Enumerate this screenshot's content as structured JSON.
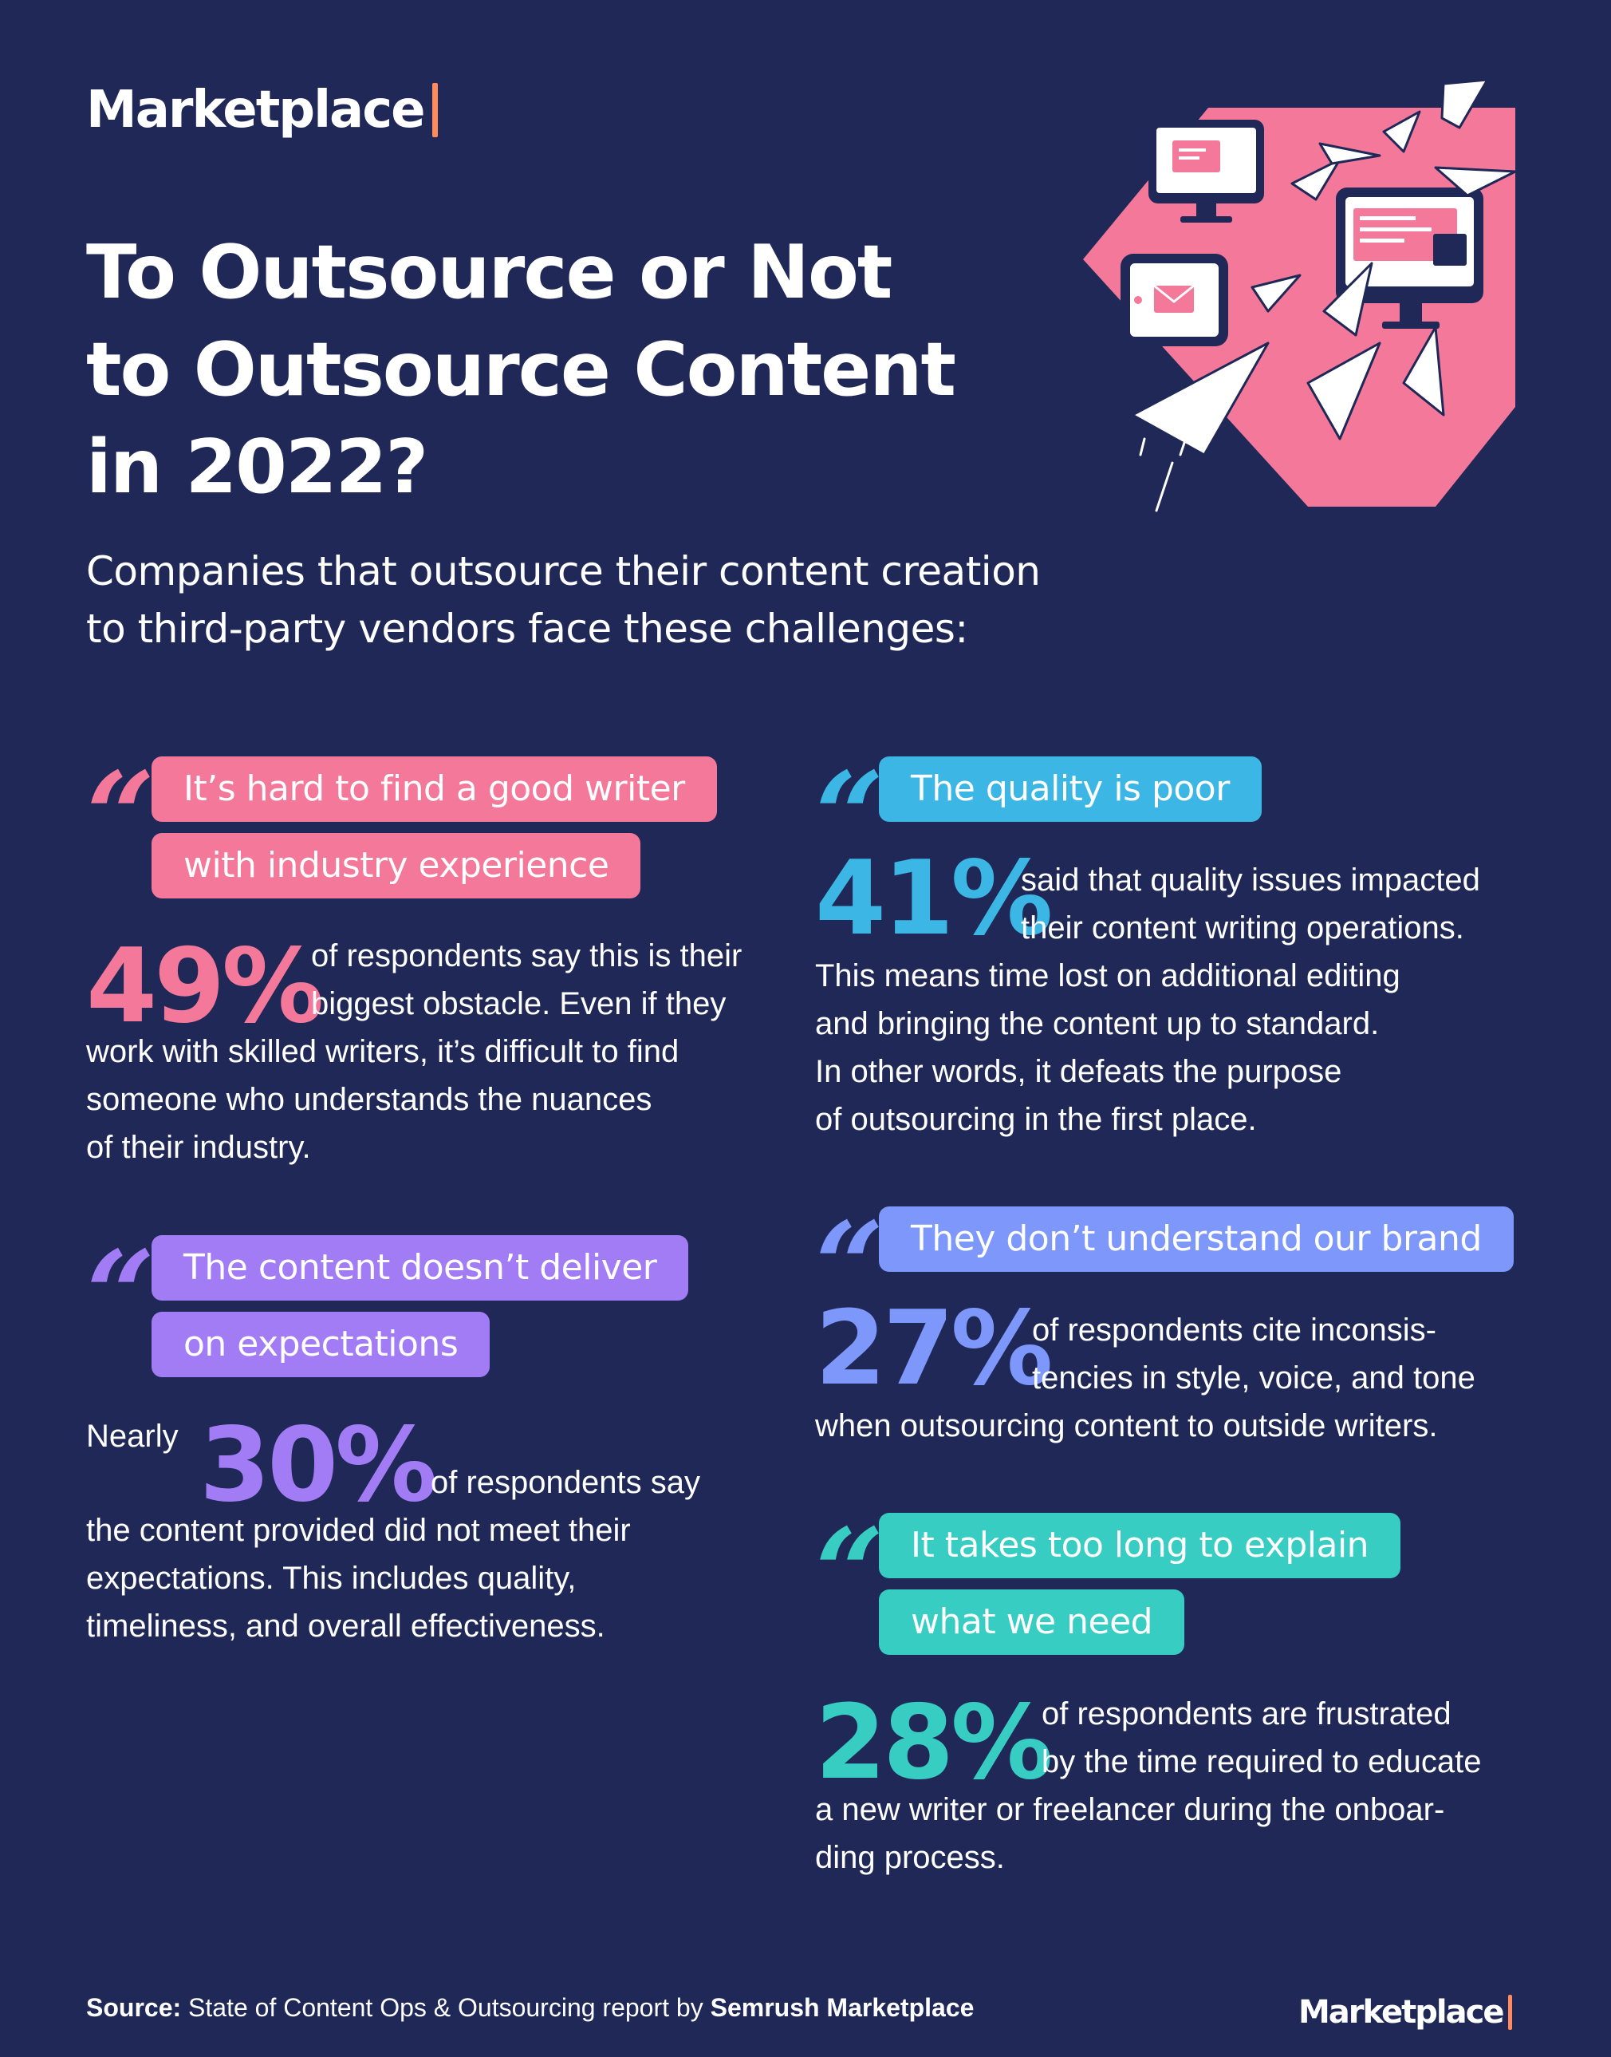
{
  "brand": {
    "name": "Marketplace",
    "accent": "#ff8a5b",
    "background": "#1f2857"
  },
  "title_lines": [
    "To Outsource or Not",
    "to Outsource Content",
    "in 2022?"
  ],
  "subtitle_lines": [
    "Companies that outsource their content creation",
    "to third-party vendors face these challenges:"
  ],
  "challenges": {
    "writer": {
      "color": "#f3789a",
      "pill_lines": [
        "It’s hard to find a good writer",
        "with industry experience"
      ],
      "stat": "49%",
      "text_side": [
        "of respondents say this is their",
        "biggest obstacle. Even if they"
      ],
      "text_rest": [
        "work with skilled writers, it’s difficult to find",
        "someone who understands the nuances",
        "of their industry."
      ]
    },
    "quality": {
      "color": "#3cb6e5",
      "pill_lines": [
        "The quality is poor"
      ],
      "stat": "41%",
      "text_side": [
        "said that quality issues impacted",
        "their content writing operations."
      ],
      "text_rest": [
        "This means time lost on additional editing",
        "and bringing the content up to standard.",
        "In other words, it defeats the purpose",
        "of outsourcing in the first place."
      ]
    },
    "expectations": {
      "color": "#a27cf5",
      "pill_lines": [
        "The content doesn’t deliver",
        "on expectations"
      ],
      "prefix": "Nearly",
      "stat": "30%",
      "text_side": [
        "of respondents say"
      ],
      "text_rest": [
        "the content provided did not meet their",
        "expectations. This includes quality,",
        "timeliness, and overall effectiveness."
      ]
    },
    "brand": {
      "color": "#7d97fb",
      "pill_lines": [
        "They don’t understand our brand"
      ],
      "stat": "27%",
      "text_side": [
        "of respondents cite inconsis-",
        "tencies in style, voice, and tone"
      ],
      "text_rest": [
        "when outsourcing content to outside writers."
      ]
    },
    "explain": {
      "color": "#37cdc3",
      "pill_lines": [
        "It takes too long to explain",
        "what we need"
      ],
      "stat": "28%",
      "text_side": [
        "of respondents are frustrated",
        "by the time required to educate"
      ],
      "text_rest": [
        "a new writer or freelancer during the onboar-",
        "ding process."
      ]
    }
  },
  "quote_mark": "“",
  "source": {
    "label": "Source:",
    "text": "State of Content Ops & Outsourcing report by",
    "org": "Semrush Marketplace"
  },
  "illustration_icons": [
    "monitor-icon",
    "tablet-icon",
    "paper-plane-icon",
    "envelope-icon"
  ]
}
